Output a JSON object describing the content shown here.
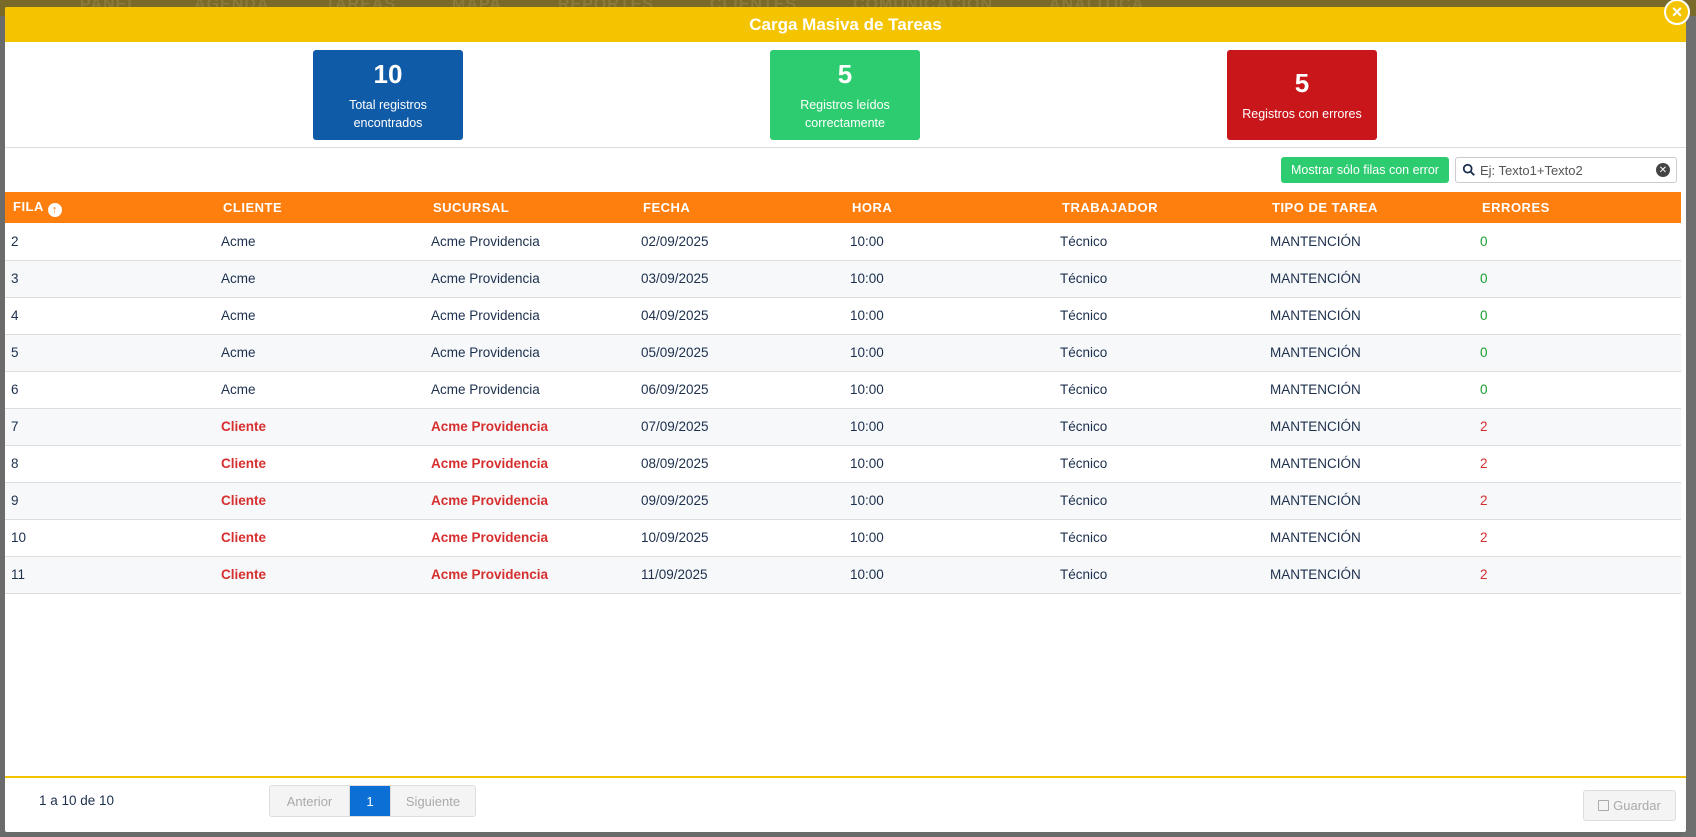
{
  "modal": {
    "title": "Carga Masiva de Tareas",
    "close_label": "×"
  },
  "stats": {
    "total": {
      "value": "10",
      "label": "Total registros encontrados",
      "color": "#0f5ba8"
    },
    "ok": {
      "value": "5",
      "label": "Registros leídos correctamente",
      "color": "#2ecc71"
    },
    "errors": {
      "value": "5",
      "label": "Registros con errores",
      "color": "#c8161b"
    }
  },
  "toolbar": {
    "filter_button": "Mostrar sólo filas con error",
    "search_placeholder": "Ej: Texto1+Texto2"
  },
  "table": {
    "columns": [
      "FILA",
      "CLIENTE",
      "SUCURSAL",
      "FECHA",
      "HORA",
      "TRABAJADOR",
      "TIPO DE TAREA",
      "ERRORES"
    ],
    "rows": [
      {
        "fila": "2",
        "cliente": "Acme",
        "sucursal": "Acme Providencia",
        "fecha": "02/09/2025",
        "hora": "10:00",
        "trabajador": "Técnico",
        "tipo": "MANTENCIÓN",
        "errores": "0"
      },
      {
        "fila": "3",
        "cliente": "Acme",
        "sucursal": "Acme Providencia",
        "fecha": "03/09/2025",
        "hora": "10:00",
        "trabajador": "Técnico",
        "tipo": "MANTENCIÓN",
        "errores": "0"
      },
      {
        "fila": "4",
        "cliente": "Acme",
        "sucursal": "Acme Providencia",
        "fecha": "04/09/2025",
        "hora": "10:00",
        "trabajador": "Técnico",
        "tipo": "MANTENCIÓN",
        "errores": "0"
      },
      {
        "fila": "5",
        "cliente": "Acme",
        "sucursal": "Acme Providencia",
        "fecha": "05/09/2025",
        "hora": "10:00",
        "trabajador": "Técnico",
        "tipo": "MANTENCIÓN",
        "errores": "0"
      },
      {
        "fila": "6",
        "cliente": "Acme",
        "sucursal": "Acme Providencia",
        "fecha": "06/09/2025",
        "hora": "10:00",
        "trabajador": "Técnico",
        "tipo": "MANTENCIÓN",
        "errores": "0"
      },
      {
        "fila": "7",
        "cliente": "Cliente",
        "sucursal": "Acme Providencia",
        "fecha": "07/09/2025",
        "hora": "10:00",
        "trabajador": "Técnico",
        "tipo": "MANTENCIÓN",
        "errores": "2"
      },
      {
        "fila": "8",
        "cliente": "Cliente",
        "sucursal": "Acme Providencia",
        "fecha": "08/09/2025",
        "hora": "10:00",
        "trabajador": "Técnico",
        "tipo": "MANTENCIÓN",
        "errores": "2"
      },
      {
        "fila": "9",
        "cliente": "Cliente",
        "sucursal": "Acme Providencia",
        "fecha": "09/09/2025",
        "hora": "10:00",
        "trabajador": "Técnico",
        "tipo": "MANTENCIÓN",
        "errores": "2"
      },
      {
        "fila": "10",
        "cliente": "Cliente",
        "sucursal": "Acme Providencia",
        "fecha": "10/09/2025",
        "hora": "10:00",
        "trabajador": "Técnico",
        "tipo": "MANTENCIÓN",
        "errores": "2"
      },
      {
        "fila": "11",
        "cliente": "Cliente",
        "sucursal": "Acme Providencia",
        "fecha": "11/09/2025",
        "hora": "10:00",
        "trabajador": "Técnico",
        "tipo": "MANTENCIÓN",
        "errores": "2"
      }
    ]
  },
  "footer": {
    "range": "1 a 10 de 10",
    "prev": "Anterior",
    "page": "1",
    "next": "Siguiente",
    "save": "Guardar"
  },
  "background": {
    "nav": [
      "PANEL",
      "AGENDA",
      "TAREAS",
      "MAPA",
      "REPORTES",
      "CLIENTES",
      "COMUNICACIÓN",
      "ANALÍTICA"
    ]
  },
  "colors": {
    "header": "#f5c400",
    "table_header": "#ff7f0e",
    "ok": "#1a9e2f",
    "error": "#d62f2f"
  }
}
